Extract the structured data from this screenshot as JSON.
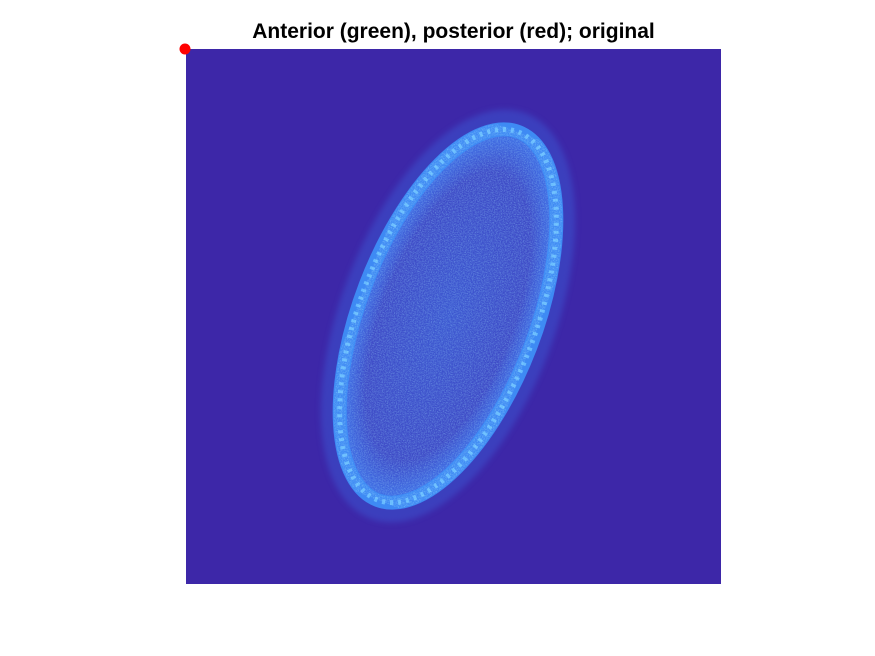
{
  "figure": {
    "title": "Anterior (green), posterior (red); original"
  },
  "image": {
    "subject": "embryo-ellipse",
    "colors": {
      "background": "#3D27A8",
      "membrane": "#3E8EF7",
      "membrane_highlight": "#6FC3FF",
      "interior": "#3A4BC8"
    }
  },
  "markers": [
    {
      "name": "posterior-marker",
      "color": "#FF0000"
    }
  ]
}
